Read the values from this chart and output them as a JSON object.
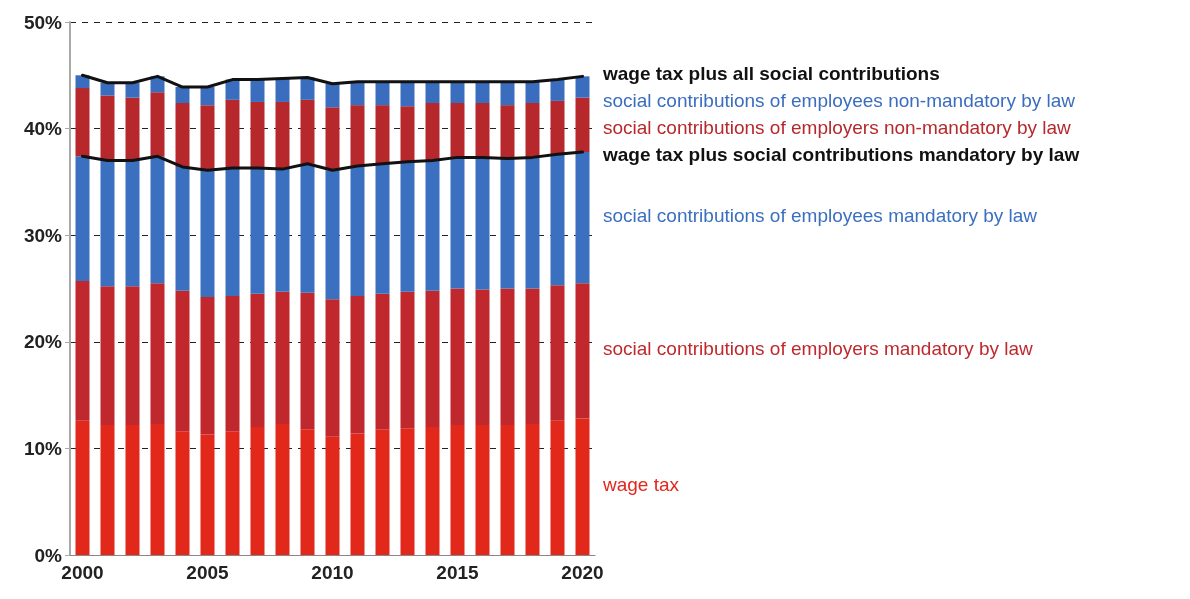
{
  "chart_data": {
    "type": "bar",
    "stacked": true,
    "categories": [
      "2000",
      null,
      null,
      null,
      null,
      "2005",
      null,
      null,
      null,
      null,
      "2010",
      null,
      null,
      null,
      null,
      "2015",
      null,
      null,
      null,
      null,
      "2020"
    ],
    "ylim": [
      0,
      50
    ],
    "yticks": [
      {
        "value": 0,
        "label": "0%"
      },
      {
        "value": 10,
        "label": "10%"
      },
      {
        "value": 20,
        "label": "20%"
      },
      {
        "value": 30,
        "label": "30%"
      },
      {
        "value": 40,
        "label": "40%"
      },
      {
        "value": 50,
        "label": "50%"
      }
    ],
    "grid": "y",
    "marker": "none",
    "line_style": "solid",
    "series": [
      {
        "name": "wage tax",
        "color": "#e2271b",
        "values": [
          12.6,
          12.2,
          12.2,
          12.3,
          11.6,
          11.3,
          11.6,
          12.0,
          12.3,
          11.8,
          11.1,
          11.4,
          11.8,
          11.9,
          12.0,
          12.2,
          12.2,
          12.2,
          12.3,
          12.6,
          12.8
        ]
      },
      {
        "name": "social contributions of employers mandatory by law",
        "color": "#c0282d",
        "values": [
          13.1,
          13.0,
          13.0,
          13.2,
          13.2,
          12.9,
          12.7,
          12.5,
          12.4,
          12.8,
          12.9,
          12.9,
          12.7,
          12.8,
          12.8,
          12.8,
          12.7,
          12.8,
          12.7,
          12.7,
          12.7
        ]
      },
      {
        "name": "social contributions of employees mandatory by law",
        "color": "#3b6fbf",
        "values": [
          11.7,
          11.8,
          11.8,
          11.9,
          11.6,
          11.9,
          12.0,
          11.8,
          11.5,
          12.1,
          12.1,
          12.2,
          12.2,
          12.2,
          12.2,
          12.3,
          12.4,
          12.2,
          12.3,
          12.3,
          12.3
        ]
      },
      {
        "name": "social contributions of employers non-mandatory by law",
        "color": "#b7282c",
        "values": [
          6.4,
          6.1,
          5.9,
          6.0,
          6.0,
          6.1,
          6.4,
          6.2,
          6.3,
          6.0,
          5.9,
          5.7,
          5.5,
          5.2,
          5.4,
          5.1,
          5.1,
          5.0,
          5.1,
          5.0,
          5.1
        ]
      },
      {
        "name": "social contributions of employees non-mandatory by law",
        "color": "#3b6dbf",
        "values": [
          1.2,
          1.2,
          1.4,
          1.5,
          1.5,
          1.7,
          1.9,
          2.1,
          2.2,
          2.1,
          2.2,
          2.2,
          2.2,
          2.3,
          2.0,
          2.0,
          2.0,
          2.2,
          2.0,
          2.0,
          2.0
        ]
      },
      {
        "name": "wage tax plus social contributions mandatory by law",
        "type": "line",
        "color": "#111111",
        "values": [
          37.4,
          37.0,
          37.0,
          37.4,
          36.4,
          36.1,
          36.3,
          36.3,
          36.2,
          36.7,
          36.1,
          36.5,
          36.7,
          36.9,
          37.0,
          37.3,
          37.3,
          37.2,
          37.3,
          37.6,
          37.8
        ]
      },
      {
        "name": "wage tax plus all social contributions",
        "type": "line",
        "color": "#111111",
        "values": [
          45.0,
          44.3,
          44.3,
          44.9,
          43.9,
          43.9,
          44.6,
          44.6,
          44.7,
          44.8,
          44.2,
          44.4,
          44.4,
          44.4,
          44.4,
          44.4,
          44.4,
          44.4,
          44.4,
          44.6,
          44.9
        ]
      }
    ]
  }
}
